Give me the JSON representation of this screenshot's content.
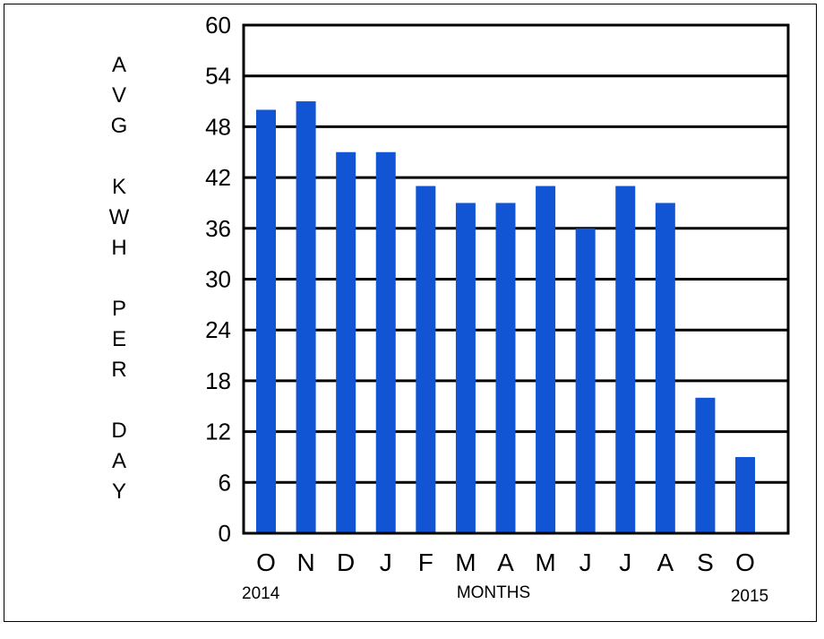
{
  "chart_data": {
    "type": "bar",
    "categories": [
      "O",
      "N",
      "D",
      "J",
      "F",
      "M",
      "A",
      "M",
      "J",
      "J",
      "A",
      "S",
      "O"
    ],
    "values": [
      50,
      51,
      45,
      45,
      41,
      39,
      39,
      41,
      36,
      41,
      39,
      16,
      9
    ],
    "ylabel": "AVG KWH PER DAY",
    "ylabel_lines": [
      "A",
      "V",
      "G",
      "",
      "K",
      "W",
      "H",
      "",
      "P",
      "E",
      "R",
      "",
      "D",
      "A",
      "Y"
    ],
    "xlabel": "MONTHS",
    "start_year": "2014",
    "end_year": "2015",
    "ylim": [
      0,
      60
    ],
    "yticks": [
      "0",
      "6",
      "12",
      "18",
      "24",
      "30",
      "36",
      "42",
      "48",
      "54",
      "60"
    ],
    "grid": true,
    "bar_color": "#1155d4"
  }
}
